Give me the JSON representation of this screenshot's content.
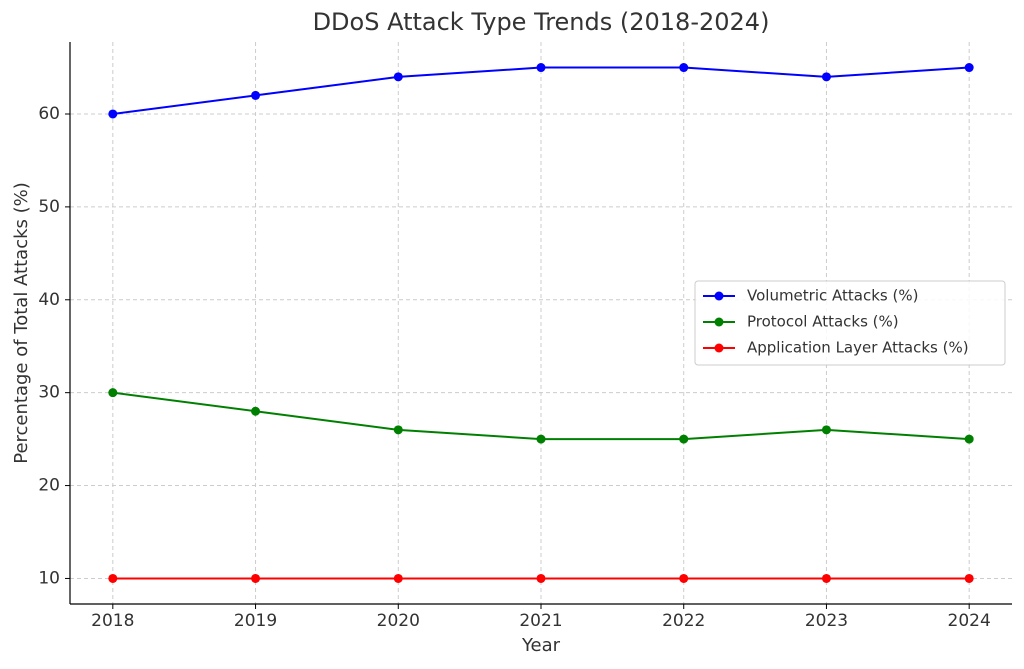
{
  "chart_data": {
    "type": "line",
    "title": "DDoS Attack Type Trends (2018-2024)",
    "x_label": "Year",
    "y_label": "Percentage of Total Attacks (%)",
    "x": [
      2018,
      2019,
      2020,
      2021,
      2022,
      2023,
      2024
    ],
    "series": [
      {
        "name": "Volumetric Attacks (%)",
        "color": "#0000ff",
        "values": [
          60,
          62,
          64,
          65,
          65,
          64,
          65
        ]
      },
      {
        "name": "Protocol Attacks (%)",
        "color": "#008000",
        "values": [
          30,
          28,
          26,
          25,
          25,
          26,
          25
        ]
      },
      {
        "name": "Application Layer Attacks (%)",
        "color": "#ff0000",
        "values": [
          10,
          10,
          10,
          10,
          10,
          10,
          10
        ]
      }
    ],
    "xlim": [
      2017.7,
      2024.3
    ],
    "xticks": [
      2018,
      2019,
      2020,
      2021,
      2022,
      2023,
      2024
    ],
    "ylim": [
      7.25,
      67.75
    ],
    "yticks": [
      10,
      20,
      30,
      40,
      50,
      60
    ],
    "grid": true,
    "legend": "center right"
  }
}
